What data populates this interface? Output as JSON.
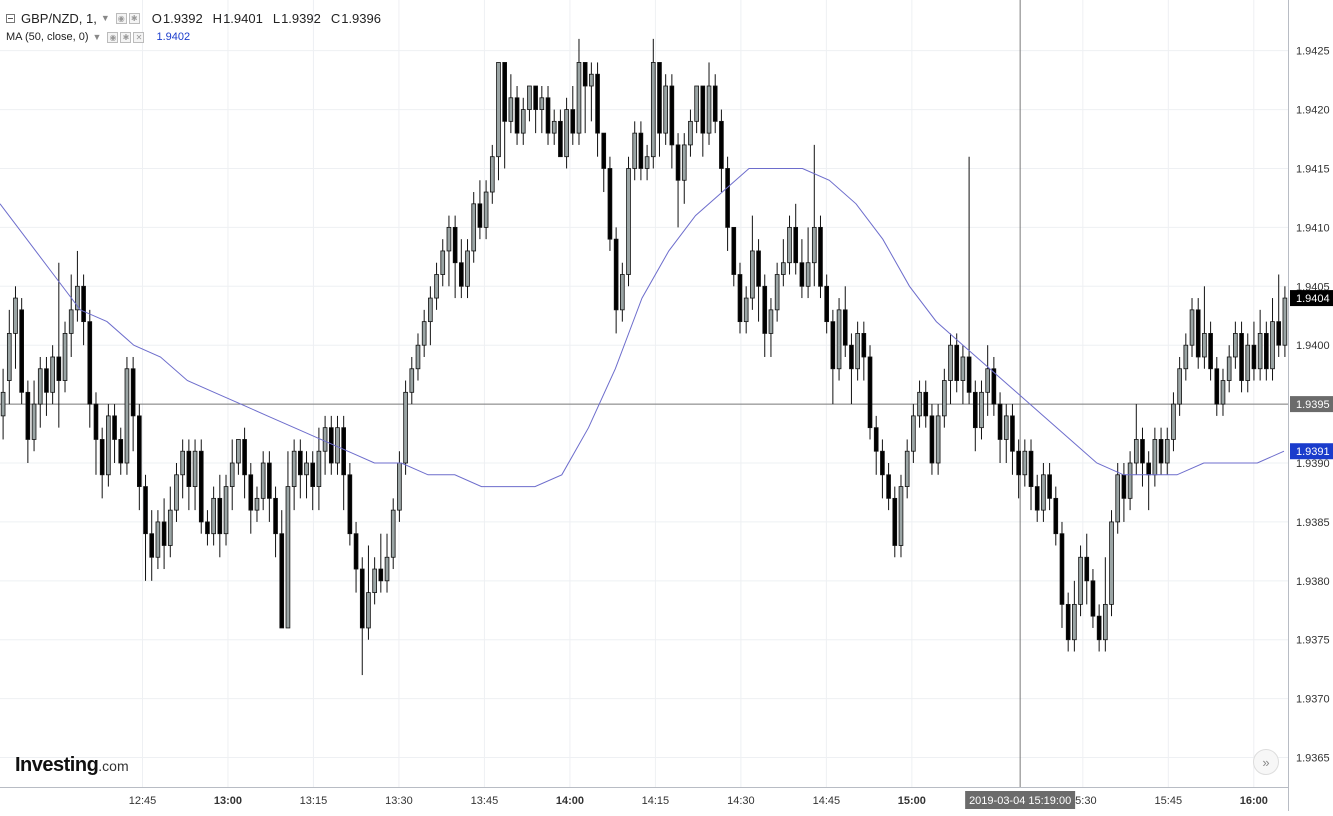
{
  "legend": {
    "symbol_text": "GBP/NZD, 1,",
    "open_label": "O",
    "open_value": "1.9392",
    "high_label": "H",
    "high_value": "1.9401",
    "low_label": "L",
    "low_value": "1.9392",
    "close_label": "C",
    "close_value": "1.9396",
    "ma_text": "MA (50, close, 0)",
    "ma_value": "1.9402"
  },
  "branding": {
    "logo_text": "Investing",
    "logo_suffix": ".com"
  },
  "colors": {
    "bull": "#9aa4a4",
    "bear": "#000000",
    "ma_line": "#6d6dcc",
    "grid": "#eef0f3",
    "price_line": "#7a7a7a",
    "ma_label_bg": "#1a3ccc"
  },
  "icons": {
    "scroll_right": "double-chevron-right-icon",
    "settings": "gear-icon",
    "visibility": "eye-icon",
    "remove": "close-icon"
  },
  "chart_data": {
    "type": "candlestick",
    "title": "GBP/NZD, 1,",
    "y_ticks": [
      "1.9425",
      "1.9420",
      "1.9415",
      "1.9410",
      "1.9405",
      "1.9400",
      "1.9395",
      "1.9390",
      "1.9385",
      "1.9380",
      "1.9375",
      "1.9370",
      "1.9365"
    ],
    "ylim": [
      1.93625,
      1.94293
    ],
    "x_ticks": [
      "12:45",
      "13:00",
      "13:15",
      "13:30",
      "13:45",
      "14:00",
      "14:15",
      "14:30",
      "14:45",
      "15:00",
      "15:30",
      "15:45",
      "16:00"
    ],
    "x_tick_bold": [
      "13:00",
      "14:00",
      "15:00",
      "16:00"
    ],
    "x_tick_minutes": [
      765,
      780,
      795,
      810,
      825,
      840,
      855,
      870,
      885,
      900,
      930,
      945,
      960
    ],
    "x_range_minutes": [
      740,
      966
    ],
    "crosshair_time": "2019-03-04 15:19:00",
    "crosshair_minute": 919,
    "price_labels": {
      "last": "1.9404",
      "crosshair": "1.9395",
      "ma": "1.9391"
    },
    "price_values": {
      "last": 1.9404,
      "crosshair": 1.9395,
      "ma": 1.9391
    },
    "candles": [
      [
        1.9394,
        1.9396,
        1.9392,
        1.9398
      ],
      [
        1.9397,
        1.9401,
        1.9395,
        1.9403
      ],
      [
        1.9401,
        1.9404,
        1.9398,
        1.9405
      ],
      [
        1.9403,
        1.9396,
        1.9395,
        1.9404
      ],
      [
        1.9396,
        1.9392,
        1.939,
        1.9397
      ],
      [
        1.9392,
        1.9395,
        1.9391,
        1.9397
      ],
      [
        1.9395,
        1.9398,
        1.9393,
        1.9399
      ],
      [
        1.9398,
        1.9396,
        1.9394,
        1.9399
      ],
      [
        1.9396,
        1.9399,
        1.9395,
        1.94
      ],
      [
        1.9399,
        1.9397,
        1.9393,
        1.9407
      ],
      [
        1.9397,
        1.9401,
        1.9396,
        1.9402
      ],
      [
        1.9401,
        1.9403,
        1.9399,
        1.9406
      ],
      [
        1.9403,
        1.9405,
        1.9402,
        1.9408
      ],
      [
        1.9405,
        1.9402,
        1.94,
        1.9406
      ],
      [
        1.9402,
        1.9395,
        1.9393,
        1.9403
      ],
      [
        1.9395,
        1.9392,
        1.9389,
        1.9396
      ],
      [
        1.9392,
        1.9389,
        1.9387,
        1.9393
      ],
      [
        1.9389,
        1.9394,
        1.9388,
        1.9395
      ],
      [
        1.9394,
        1.9392,
        1.939,
        1.9395
      ],
      [
        1.9392,
        1.939,
        1.9389,
        1.9393
      ],
      [
        1.939,
        1.9398,
        1.9389,
        1.9399
      ],
      [
        1.9398,
        1.9394,
        1.9391,
        1.9399
      ],
      [
        1.9394,
        1.9388,
        1.9386,
        1.9395
      ],
      [
        1.9388,
        1.9384,
        1.938,
        1.9389
      ],
      [
        1.9384,
        1.9382,
        1.938,
        1.9386
      ],
      [
        1.9382,
        1.9385,
        1.9381,
        1.9386
      ],
      [
        1.9385,
        1.9383,
        1.9381,
        1.9387
      ],
      [
        1.9383,
        1.9386,
        1.9382,
        1.9388
      ],
      [
        1.9386,
        1.9389,
        1.9385,
        1.939
      ],
      [
        1.9389,
        1.9391,
        1.9387,
        1.9392
      ],
      [
        1.9391,
        1.9388,
        1.9386,
        1.9392
      ],
      [
        1.9388,
        1.9391,
        1.9386,
        1.9392
      ],
      [
        1.9391,
        1.9385,
        1.9384,
        1.9392
      ],
      [
        1.9385,
        1.9384,
        1.9383,
        1.9386
      ],
      [
        1.9384,
        1.9387,
        1.9383,
        1.9388
      ],
      [
        1.9387,
        1.9384,
        1.9382,
        1.9389
      ],
      [
        1.9384,
        1.9388,
        1.9383,
        1.9389
      ],
      [
        1.9388,
        1.939,
        1.9386,
        1.9392
      ],
      [
        1.939,
        1.9392,
        1.9389,
        1.9392
      ],
      [
        1.9392,
        1.9389,
        1.9387,
        1.9393
      ],
      [
        1.9389,
        1.9386,
        1.9384,
        1.939
      ],
      [
        1.9386,
        1.9387,
        1.9385,
        1.9388
      ],
      [
        1.9387,
        1.939,
        1.9386,
        1.9391
      ],
      [
        1.939,
        1.9387,
        1.9385,
        1.9391
      ],
      [
        1.9387,
        1.9384,
        1.9382,
        1.9388
      ],
      [
        1.9384,
        1.9376,
        1.9376,
        1.9386
      ],
      [
        1.9376,
        1.9388,
        1.9376,
        1.9391
      ],
      [
        1.9388,
        1.9391,
        1.9386,
        1.9392
      ],
      [
        1.9391,
        1.9389,
        1.9387,
        1.9392
      ],
      [
        1.9389,
        1.939,
        1.9387,
        1.9391
      ],
      [
        1.939,
        1.9388,
        1.9386,
        1.9391
      ],
      [
        1.9388,
        1.9391,
        1.9386,
        1.9393
      ],
      [
        1.9391,
        1.9393,
        1.9389,
        1.9394
      ],
      [
        1.9393,
        1.939,
        1.9389,
        1.9394
      ],
      [
        1.939,
        1.9393,
        1.9389,
        1.9394
      ],
      [
        1.9393,
        1.9389,
        1.9386,
        1.9394
      ],
      [
        1.9389,
        1.9384,
        1.9383,
        1.939
      ],
      [
        1.9384,
        1.9381,
        1.9379,
        1.9385
      ],
      [
        1.9381,
        1.9376,
        1.9372,
        1.9382
      ],
      [
        1.9376,
        1.9379,
        1.9375,
        1.9383
      ],
      [
        1.9379,
        1.9381,
        1.9378,
        1.9382
      ],
      [
        1.9381,
        1.938,
        1.9379,
        1.9384
      ],
      [
        1.938,
        1.9382,
        1.9379,
        1.9384
      ],
      [
        1.9382,
        1.9386,
        1.9381,
        1.9387
      ],
      [
        1.9386,
        1.939,
        1.9385,
        1.9391
      ],
      [
        1.939,
        1.9396,
        1.9389,
        1.9397
      ],
      [
        1.9396,
        1.9398,
        1.9395,
        1.9399
      ],
      [
        1.9398,
        1.94,
        1.9397,
        1.9401
      ],
      [
        1.94,
        1.9402,
        1.9399,
        1.9403
      ],
      [
        1.9402,
        1.9404,
        1.94,
        1.9405
      ],
      [
        1.9404,
        1.9406,
        1.9403,
        1.9407
      ],
      [
        1.9406,
        1.9408,
        1.9405,
        1.9409
      ],
      [
        1.9408,
        1.941,
        1.9405,
        1.9411
      ],
      [
        1.941,
        1.9407,
        1.9404,
        1.9411
      ],
      [
        1.9407,
        1.9405,
        1.9404,
        1.9409
      ],
      [
        1.9405,
        1.9408,
        1.9404,
        1.9409
      ],
      [
        1.9408,
        1.9412,
        1.9407,
        1.9413
      ],
      [
        1.9412,
        1.941,
        1.9409,
        1.9414
      ],
      [
        1.941,
        1.9413,
        1.9409,
        1.9414
      ],
      [
        1.9413,
        1.9416,
        1.9412,
        1.9417
      ],
      [
        1.9416,
        1.9424,
        1.9414,
        1.9424
      ],
      [
        1.9424,
        1.9419,
        1.9415,
        1.9424
      ],
      [
        1.9419,
        1.9421,
        1.9418,
        1.9423
      ],
      [
        1.9421,
        1.9418,
        1.9417,
        1.9422
      ],
      [
        1.9418,
        1.942,
        1.9417,
        1.9421
      ],
      [
        1.942,
        1.9422,
        1.9419,
        1.9422
      ],
      [
        1.9422,
        1.942,
        1.9418,
        1.9422
      ],
      [
        1.942,
        1.9421,
        1.9418,
        1.9422
      ],
      [
        1.9421,
        1.9418,
        1.9417,
        1.9422
      ],
      [
        1.9418,
        1.9419,
        1.9417,
        1.942
      ],
      [
        1.9419,
        1.9416,
        1.9416,
        1.942
      ],
      [
        1.9416,
        1.942,
        1.9415,
        1.9421
      ],
      [
        1.942,
        1.9418,
        1.9417,
        1.9422
      ],
      [
        1.9418,
        1.9424,
        1.9417,
        1.9426
      ],
      [
        1.9424,
        1.9422,
        1.9418,
        1.9424
      ],
      [
        1.9422,
        1.9423,
        1.9419,
        1.9424
      ],
      [
        1.9423,
        1.9418,
        1.9416,
        1.9424
      ],
      [
        1.9418,
        1.9415,
        1.9413,
        1.9418
      ],
      [
        1.9415,
        1.9409,
        1.9408,
        1.9416
      ],
      [
        1.9409,
        1.9403,
        1.9401,
        1.941
      ],
      [
        1.9403,
        1.9406,
        1.9402,
        1.9407
      ],
      [
        1.9406,
        1.9415,
        1.9405,
        1.9416
      ],
      [
        1.9415,
        1.9418,
        1.9414,
        1.9419
      ],
      [
        1.9418,
        1.9415,
        1.9414,
        1.9419
      ],
      [
        1.9415,
        1.9416,
        1.9414,
        1.9417
      ],
      [
        1.9416,
        1.9424,
        1.9415,
        1.9426
      ],
      [
        1.9424,
        1.9418,
        1.9416,
        1.9424
      ],
      [
        1.9418,
        1.9422,
        1.9417,
        1.9423
      ],
      [
        1.9422,
        1.9417,
        1.9415,
        1.9423
      ],
      [
        1.9417,
        1.9414,
        1.941,
        1.9418
      ],
      [
        1.9414,
        1.9417,
        1.9412,
        1.9418
      ],
      [
        1.9417,
        1.9419,
        1.9416,
        1.942
      ],
      [
        1.9419,
        1.9422,
        1.9418,
        1.9422
      ],
      [
        1.9422,
        1.9418,
        1.9416,
        1.9422
      ],
      [
        1.9418,
        1.9422,
        1.9417,
        1.9424
      ],
      [
        1.9422,
        1.9419,
        1.9418,
        1.9423
      ],
      [
        1.9419,
        1.9415,
        1.9413,
        1.942
      ],
      [
        1.9415,
        1.941,
        1.9408,
        1.9416
      ],
      [
        1.941,
        1.9406,
        1.9405,
        1.941
      ],
      [
        1.9406,
        1.9402,
        1.9401,
        1.9407
      ],
      [
        1.9402,
        1.9404,
        1.9401,
        1.9405
      ],
      [
        1.9404,
        1.9408,
        1.9403,
        1.9411
      ],
      [
        1.9408,
        1.9405,
        1.9402,
        1.9409
      ],
      [
        1.9405,
        1.9401,
        1.9399,
        1.9406
      ],
      [
        1.9401,
        1.9403,
        1.9399,
        1.9404
      ],
      [
        1.9403,
        1.9406,
        1.9402,
        1.9407
      ],
      [
        1.9406,
        1.9407,
        1.9405,
        1.9409
      ],
      [
        1.9407,
        1.941,
        1.9406,
        1.9411
      ],
      [
        1.941,
        1.9407,
        1.9406,
        1.9412
      ],
      [
        1.9407,
        1.9405,
        1.9404,
        1.9409
      ],
      [
        1.9405,
        1.9407,
        1.9404,
        1.941
      ],
      [
        1.9407,
        1.941,
        1.9405,
        1.9417
      ],
      [
        1.941,
        1.9405,
        1.9404,
        1.9411
      ],
      [
        1.9405,
        1.9402,
        1.9401,
        1.9406
      ],
      [
        1.9402,
        1.9398,
        1.9395,
        1.9403
      ],
      [
        1.9398,
        1.9403,
        1.9397,
        1.9404
      ],
      [
        1.9403,
        1.94,
        1.9399,
        1.9405
      ],
      [
        1.94,
        1.9398,
        1.9395,
        1.9401
      ],
      [
        1.9398,
        1.9401,
        1.9397,
        1.9402
      ],
      [
        1.9401,
        1.9399,
        1.9397,
        1.9402
      ],
      [
        1.9399,
        1.9393,
        1.9392,
        1.94
      ],
      [
        1.9393,
        1.9391,
        1.9389,
        1.9394
      ],
      [
        1.9391,
        1.9389,
        1.9387,
        1.9392
      ],
      [
        1.9389,
        1.9387,
        1.9386,
        1.939
      ],
      [
        1.9387,
        1.9383,
        1.9382,
        1.9388
      ],
      [
        1.9383,
        1.9388,
        1.9382,
        1.9389
      ],
      [
        1.9388,
        1.9391,
        1.9387,
        1.9392
      ],
      [
        1.9391,
        1.9394,
        1.939,
        1.9395
      ],
      [
        1.9394,
        1.9396,
        1.9393,
        1.9397
      ],
      [
        1.9396,
        1.9394,
        1.9393,
        1.9397
      ],
      [
        1.9394,
        1.939,
        1.9389,
        1.9395
      ],
      [
        1.939,
        1.9394,
        1.9389,
        1.9395
      ],
      [
        1.9394,
        1.9397,
        1.9393,
        1.9398
      ],
      [
        1.9397,
        1.94,
        1.9395,
        1.9401
      ],
      [
        1.94,
        1.9397,
        1.9396,
        1.9401
      ],
      [
        1.9397,
        1.9399,
        1.9395,
        1.94
      ],
      [
        1.9399,
        1.9396,
        1.9395,
        1.9416
      ],
      [
        1.9396,
        1.9393,
        1.9391,
        1.9397
      ],
      [
        1.9393,
        1.9396,
        1.9392,
        1.9397
      ],
      [
        1.9396,
        1.9398,
        1.9394,
        1.94
      ],
      [
        1.9398,
        1.9395,
        1.9394,
        1.9399
      ],
      [
        1.9395,
        1.9392,
        1.939,
        1.9396
      ],
      [
        1.9392,
        1.9394,
        1.939,
        1.9395
      ],
      [
        1.9394,
        1.9391,
        1.9389,
        1.9395
      ],
      [
        1.9391,
        1.9389,
        1.9387,
        1.9392
      ],
      [
        1.9389,
        1.9391,
        1.9388,
        1.9392
      ],
      [
        1.9391,
        1.9388,
        1.9386,
        1.9392
      ],
      [
        1.9388,
        1.9386,
        1.9385,
        1.9389
      ],
      [
        1.9386,
        1.9389,
        1.9385,
        1.939
      ],
      [
        1.9389,
        1.9387,
        1.9386,
        1.939
      ],
      [
        1.9387,
        1.9384,
        1.9383,
        1.9388
      ],
      [
        1.9384,
        1.9378,
        1.9376,
        1.9385
      ],
      [
        1.9378,
        1.9375,
        1.9374,
        1.9379
      ],
      [
        1.9375,
        1.9378,
        1.9374,
        1.938
      ],
      [
        1.9378,
        1.9382,
        1.9377,
        1.9383
      ],
      [
        1.9382,
        1.938,
        1.9378,
        1.9384
      ],
      [
        1.938,
        1.9377,
        1.9376,
        1.9381
      ],
      [
        1.9377,
        1.9375,
        1.9374,
        1.9378
      ],
      [
        1.9375,
        1.9378,
        1.9374,
        1.9382
      ],
      [
        1.9378,
        1.9385,
        1.9377,
        1.9386
      ],
      [
        1.9385,
        1.9389,
        1.9384,
        1.939
      ],
      [
        1.9389,
        1.9387,
        1.9385,
        1.939
      ],
      [
        1.9387,
        1.939,
        1.9386,
        1.9391
      ],
      [
        1.939,
        1.9392,
        1.9389,
        1.9395
      ],
      [
        1.9392,
        1.939,
        1.9388,
        1.9393
      ],
      [
        1.939,
        1.9389,
        1.9386,
        1.9391
      ],
      [
        1.9389,
        1.9392,
        1.9388,
        1.9393
      ],
      [
        1.9392,
        1.939,
        1.9389,
        1.9393
      ],
      [
        1.939,
        1.9392,
        1.9389,
        1.9393
      ],
      [
        1.9392,
        1.9395,
        1.9391,
        1.9396
      ],
      [
        1.9395,
        1.9398,
        1.9394,
        1.9399
      ],
      [
        1.9398,
        1.94,
        1.9397,
        1.9401
      ],
      [
        1.94,
        1.9403,
        1.9399,
        1.9404
      ],
      [
        1.9403,
        1.9399,
        1.9398,
        1.9404
      ],
      [
        1.9399,
        1.9401,
        1.9398,
        1.9405
      ],
      [
        1.9401,
        1.9398,
        1.9397,
        1.9402
      ],
      [
        1.9398,
        1.9395,
        1.9394,
        1.9399
      ],
      [
        1.9395,
        1.9397,
        1.9394,
        1.9398
      ],
      [
        1.9397,
        1.9399,
        1.9396,
        1.94
      ],
      [
        1.9399,
        1.9401,
        1.9398,
        1.9402
      ],
      [
        1.9401,
        1.9397,
        1.9396,
        1.9402
      ],
      [
        1.9397,
        1.94,
        1.9396,
        1.9401
      ],
      [
        1.94,
        1.9398,
        1.9397,
        1.9402
      ],
      [
        1.9398,
        1.9401,
        1.9397,
        1.9403
      ],
      [
        1.9401,
        1.9398,
        1.9397,
        1.9402
      ],
      [
        1.9398,
        1.9402,
        1.9397,
        1.9404
      ],
      [
        1.9402,
        1.94,
        1.9399,
        1.9406
      ],
      [
        1.94,
        1.9404,
        1.9399,
        1.9405
      ]
    ],
    "ma": [
      1.9412,
      1.9409,
      1.9406,
      1.9403,
      1.9402,
      1.94,
      1.9399,
      1.9397,
      1.9396,
      1.9395,
      1.9394,
      1.9393,
      1.9392,
      1.9391,
      1.939,
      1.939,
      1.9389,
      1.9389,
      1.9388,
      1.9388,
      1.9388,
      1.9389,
      1.9393,
      1.9398,
      1.9404,
      1.9408,
      1.9411,
      1.9413,
      1.9415,
      1.9415,
      1.9415,
      1.9414,
      1.9412,
      1.9409,
      1.9405,
      1.9402,
      1.94,
      1.9398,
      1.9396,
      1.9394,
      1.9392,
      1.939,
      1.9389,
      1.9389,
      1.9389,
      1.939,
      1.939,
      1.939,
      1.9391
    ]
  }
}
